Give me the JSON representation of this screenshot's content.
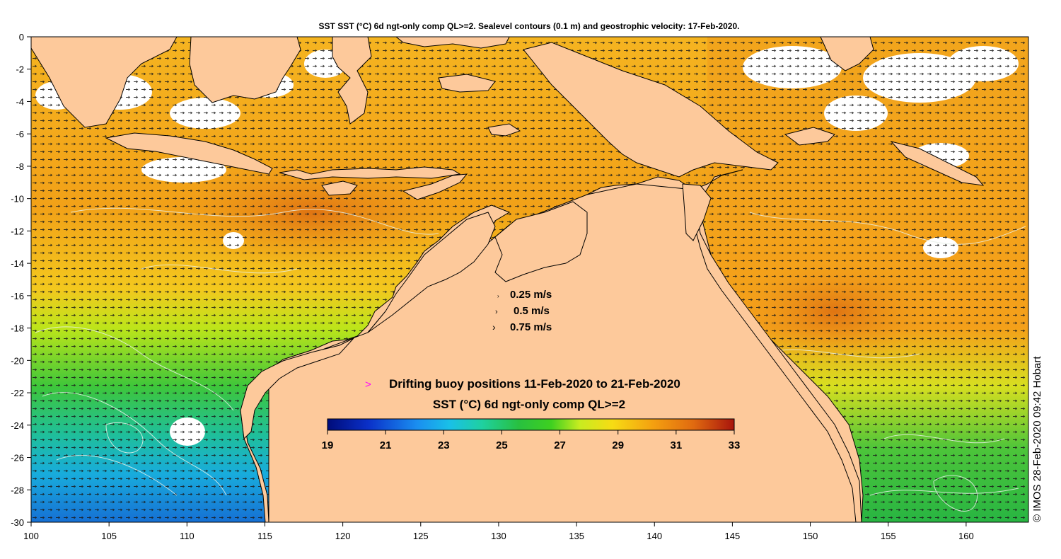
{
  "title": "SST SST (°C) 6d ngt-only comp QL>=2. Sealevel contours (0.1 m) and geostrophic velocity: 17-Feb-2020.",
  "x_ticks": [
    "100",
    "105",
    "110",
    "115",
    "120",
    "125",
    "130",
    "135",
    "140",
    "145",
    "150",
    "155",
    "160"
  ],
  "x_tick_values": [
    100,
    105,
    110,
    115,
    120,
    125,
    130,
    135,
    140,
    145,
    150,
    155,
    160
  ],
  "y_ticks": [
    "0",
    "-2",
    "-4",
    "-6",
    "-8",
    "-10",
    "-12",
    "-14",
    "-16",
    "-18",
    "-20",
    "-22",
    "-24",
    "-26",
    "-28",
    "-30"
  ],
  "y_tick_values": [
    0,
    -2,
    -4,
    -6,
    -8,
    -10,
    -12,
    -14,
    -16,
    -18,
    -20,
    -22,
    -24,
    -26,
    -28,
    -30
  ],
  "extent": {
    "lon": [
      100,
      164
    ],
    "lat": [
      0,
      -30
    ]
  },
  "velocity_legend": [
    {
      "label": "0.25 m/s",
      "speed": 0.25
    },
    {
      "label": "0.5 m/s",
      "speed": 0.5
    },
    {
      "label": "0.75 m/s",
      "speed": 0.75
    }
  ],
  "buoy_symbol": ">",
  "buoy_legend": "Drifting buoy positions 11-Feb-2020 to 21-Feb-2020",
  "colorbar_title": "SST (°C) 6d ngt-only comp QL>=2",
  "colorbar_ticks": [
    "19",
    "21",
    "23",
    "25",
    "27",
    "29",
    "31",
    "33"
  ],
  "colorbar_range": [
    19,
    33
  ],
  "credit": "© IMOS 28-Feb-2020 09:42 Hobart",
  "colors": {
    "land": "#fdc99b",
    "warm_orange": "#f4a21e",
    "deep_orange": "#e07a10",
    "hot_red": "#c4400c",
    "yellow": "#f3e11a",
    "green": "#2fbd3a",
    "cyan": "#19b8d6",
    "blue": "#1868d2",
    "buoy": "#ff00ff"
  }
}
